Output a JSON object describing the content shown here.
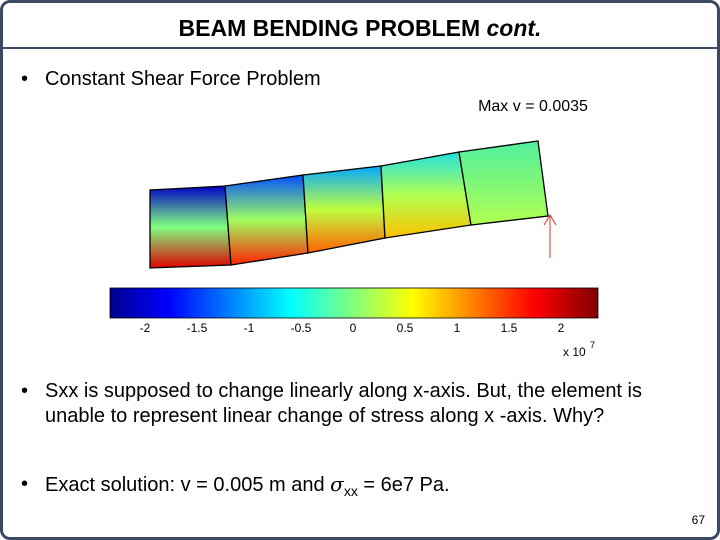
{
  "header": {
    "title": "BEAM BENDING PROBLEM",
    "title_italic": "cont."
  },
  "bullets": [
    {
      "text": "Constant Shear Force Problem"
    },
    {
      "text": "Sxx is supposed to change linearly along x-axis. But, the element is unable to represent linear change of stress along x -axis. Why?"
    },
    {
      "text": "Exact solution: v = 0.005 m and ",
      "symbol": "σ",
      "subscript": "xx",
      "rest": " = 6e7 Pa."
    }
  ],
  "figure": {
    "caption": "Max v = 0.0035",
    "colorbar": {
      "ticks": [
        "-2",
        "-1.5",
        "-1",
        "-0.5",
        "0",
        "0.5",
        "1",
        "1.5",
        "2"
      ],
      "multiplier": "x 10",
      "exponent": "7"
    }
  },
  "page_number": "67"
}
